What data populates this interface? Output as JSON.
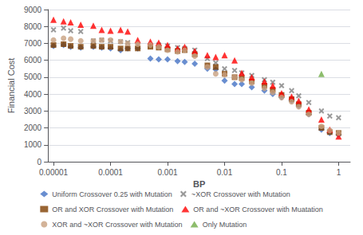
{
  "chart_data": {
    "type": "scatter",
    "xlabel": "BP",
    "ylabel": "Financial Cost",
    "log": "x",
    "xlim": [
      8e-06,
      1.6
    ],
    "xticks": [
      1e-05,
      0.0001,
      0.001,
      0.01,
      0.1,
      1
    ],
    "ylim": [
      0,
      9000
    ],
    "yticks": [
      0,
      1000,
      2000,
      3000,
      4000,
      5000,
      6000,
      7000,
      8000,
      9000
    ],
    "grid": true,
    "legend": "bottom",
    "series": [
      {
        "name": "Uniform Crossover 0.25 with Mutation",
        "color": "#4472C4",
        "marker": "diamond",
        "x": [
          1e-05,
          1.5e-05,
          2e-05,
          3e-05,
          5e-05,
          7e-05,
          0.0001,
          0.00015,
          0.0002,
          0.0003,
          0.0005,
          0.0007,
          0.001,
          0.0015,
          0.002,
          0.003,
          0.005,
          0.007,
          0.01,
          0.015,
          0.02,
          0.03,
          0.05,
          0.07,
          0.1,
          0.15,
          0.2,
          0.3,
          0.5,
          0.7,
          1.0
        ],
        "values": [
          6850,
          6900,
          6800,
          6750,
          6800,
          6750,
          6700,
          6600,
          6700,
          6700,
          6100,
          6050,
          6050,
          5950,
          5900,
          5800,
          5500,
          5450,
          4800,
          4600,
          4600,
          4400,
          4200,
          4000,
          3800,
          3600,
          3300,
          2800,
          1900,
          1700,
          1600
        ]
      },
      {
        "name": "~XOR Crossover with Mutation",
        "color": "#808080",
        "marker": "x",
        "x": [
          1e-05,
          1.5e-05,
          2e-05,
          3e-05,
          5e-05,
          7e-05,
          0.0001,
          0.00015,
          0.0002,
          0.0003,
          0.0005,
          0.0007,
          0.001,
          0.0015,
          0.002,
          0.003,
          0.005,
          0.007,
          0.01,
          0.015,
          0.02,
          0.03,
          0.05,
          0.07,
          0.1,
          0.15,
          0.2,
          0.3,
          0.5,
          0.7,
          1.0
        ],
        "values": [
          7800,
          7900,
          7750,
          7700,
          7150,
          7200,
          7150,
          7100,
          7050,
          6900,
          6900,
          6900,
          6850,
          6750,
          6700,
          6600,
          6100,
          5850,
          5500,
          5400,
          5250,
          5100,
          4850,
          4700,
          4500,
          4200,
          3900,
          3500,
          3000,
          2700,
          2600
        ]
      },
      {
        "name": "OR and XOR Crossover with Mutation",
        "color": "#7F3F00",
        "marker": "square",
        "x": [
          1e-05,
          1.5e-05,
          2e-05,
          3e-05,
          5e-05,
          7e-05,
          0.0001,
          0.00015,
          0.0002,
          0.0003,
          0.0005,
          0.0007,
          0.001,
          0.0015,
          0.002,
          0.003,
          0.005,
          0.007,
          0.01,
          0.015,
          0.02,
          0.03,
          0.05,
          0.07,
          0.1,
          0.15,
          0.2,
          0.3,
          0.5,
          0.7,
          1.0
        ],
        "values": [
          6900,
          6950,
          6850,
          6800,
          6850,
          6800,
          6800,
          6700,
          6700,
          6700,
          6800,
          6750,
          6650,
          6550,
          6600,
          6350,
          5700,
          5600,
          5200,
          5000,
          4950,
          4750,
          4500,
          4250,
          3950,
          3700,
          3400,
          2900,
          2000,
          1750,
          1700
        ]
      },
      {
        "name": "OR and ~XOR Crossover with Muatation",
        "color": "#FF0000",
        "marker": "triangle",
        "x": [
          1e-05,
          1.5e-05,
          2e-05,
          3e-05,
          5e-05,
          7e-05,
          0.0001,
          0.00015,
          0.0002,
          0.0003,
          0.0005,
          0.0007,
          0.001,
          0.0015,
          0.002,
          0.003,
          0.005,
          0.007,
          0.01,
          0.015,
          0.02,
          0.03,
          0.05,
          0.07,
          0.1,
          0.15,
          0.2,
          0.3,
          0.5,
          0.7,
          1.0
        ],
        "values": [
          8400,
          8300,
          8250,
          8100,
          8050,
          7800,
          7750,
          7800,
          7700,
          7200,
          7100,
          7050,
          6900,
          6700,
          6800,
          6550,
          6300,
          6200,
          6300,
          6000,
          5250,
          5000,
          4750,
          4500,
          4050,
          3850,
          3600,
          3100,
          2500,
          1900,
          1500
        ]
      },
      {
        "name": "XOR and ~XOR Crossover with Mutation",
        "color": "#C8A080",
        "marker": "circle",
        "x": [
          1e-05,
          1.5e-05,
          2e-05,
          3e-05,
          5e-05,
          7e-05,
          0.0001,
          0.00015,
          0.0002,
          0.0003,
          0.0005,
          0.0007,
          0.001,
          0.0015,
          0.002,
          0.003,
          0.005,
          0.007,
          0.01,
          0.015,
          0.02,
          0.03,
          0.05,
          0.07,
          0.1,
          0.15,
          0.2,
          0.3,
          0.5,
          0.7,
          1.0
        ],
        "values": [
          7200,
          7300,
          7250,
          7150,
          7150,
          7200,
          7200,
          7100,
          7000,
          6950,
          6900,
          6800,
          6600,
          6500,
          6600,
          6250,
          5600,
          5200,
          5150,
          5000,
          4850,
          4650,
          4350,
          4100,
          3800,
          3550,
          3250,
          2800,
          2100,
          1850,
          1700
        ]
      },
      {
        "name": "Only Mutation",
        "color": "#70AD47",
        "marker": "triangle",
        "x": [
          0.5
        ],
        "values": [
          5200
        ]
      }
    ]
  }
}
